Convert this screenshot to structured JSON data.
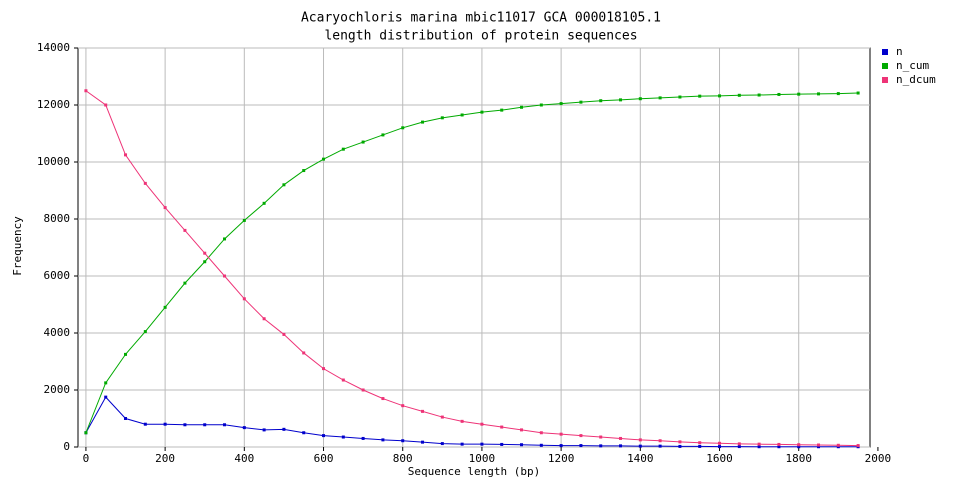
{
  "chart_data": {
    "type": "line",
    "title": "Acaryochloris marina mbic11017 GCA 000018105.1",
    "subtitle": "length distribution of protein sequences",
    "x_label": "Sequence length (bp)",
    "y_label": "Frequency",
    "x": [
      0,
      50,
      100,
      150,
      200,
      250,
      300,
      350,
      400,
      450,
      500,
      550,
      600,
      650,
      700,
      750,
      800,
      850,
      900,
      950,
      1000,
      1050,
      1100,
      1150,
      1200,
      1250,
      1300,
      1350,
      1400,
      1450,
      1500,
      1550,
      1600,
      1650,
      1700,
      1750,
      1800,
      1850,
      1900,
      1950
    ],
    "series": [
      {
        "name": "n",
        "color": "#0000cc",
        "values": [
          500,
          1750,
          1000,
          800,
          800,
          780,
          780,
          780,
          680,
          600,
          620,
          500,
          400,
          350,
          300,
          250,
          220,
          170,
          120,
          100,
          100,
          90,
          80,
          60,
          50,
          50,
          40,
          40,
          30,
          30,
          20,
          20,
          15,
          15,
          10,
          10,
          10,
          10,
          10,
          10
        ]
      },
      {
        "name": "n_cum",
        "color": "#00aa00",
        "values": [
          500,
          2250,
          3250,
          4050,
          4900,
          5750,
          6500,
          7300,
          7950,
          8550,
          9200,
          9700,
          10100,
          10450,
          10700,
          10950,
          11200,
          11400,
          11550,
          11650,
          11750,
          11820,
          11920,
          12000,
          12050,
          12100,
          12150,
          12180,
          12220,
          12250,
          12280,
          12310,
          12320,
          12340,
          12350,
          12370,
          12380,
          12390,
          12400,
          12420
        ]
      },
      {
        "name": "n_dcum",
        "color": "#ee3377",
        "values": [
          12500,
          12000,
          10250,
          9250,
          8400,
          7600,
          6800,
          6000,
          5200,
          4500,
          3950,
          3300,
          2750,
          2350,
          2000,
          1700,
          1450,
          1250,
          1050,
          900,
          800,
          700,
          600,
          500,
          450,
          400,
          350,
          300,
          250,
          220,
          180,
          150,
          130,
          110,
          100,
          90,
          80,
          70,
          60,
          50
        ]
      }
    ],
    "xlim": [
      -20,
      1980
    ],
    "ylim": [
      0,
      14000
    ],
    "xticks": [
      0,
      200,
      400,
      600,
      800,
      1000,
      1200,
      1400,
      1600,
      1800,
      2000
    ],
    "yticks": [
      0,
      2000,
      4000,
      6000,
      8000,
      10000,
      12000,
      14000
    ],
    "grid": true,
    "legend": "top-right"
  }
}
